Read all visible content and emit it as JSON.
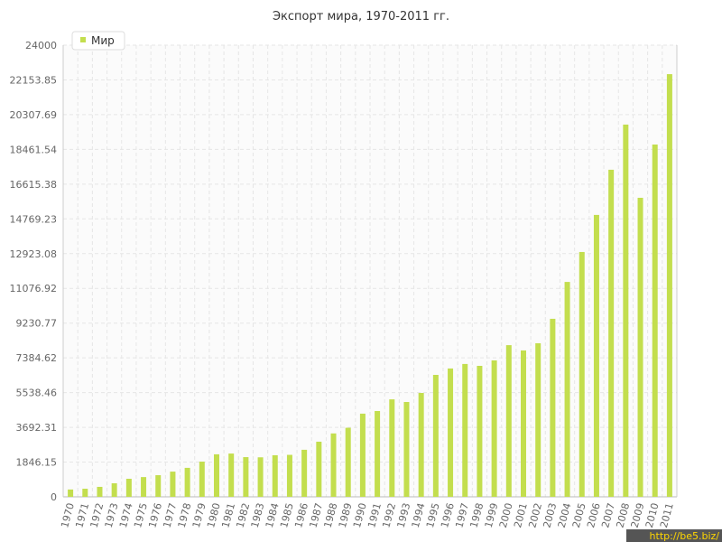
{
  "chart_data": {
    "type": "bar",
    "title": "Экспорт мира, 1970-2011 гг.",
    "categories": [
      "1970",
      "1971",
      "1972",
      "1973",
      "1974",
      "1975",
      "1976",
      "1977",
      "1978",
      "1979",
      "1980",
      "1981",
      "1982",
      "1983",
      "1984",
      "1985",
      "1986",
      "1987",
      "1988",
      "1989",
      "1990",
      "1991",
      "1992",
      "1993",
      "1994",
      "1995",
      "1996",
      "1997",
      "1998",
      "1999",
      "2000",
      "2001",
      "2002",
      "2003",
      "2004",
      "2005",
      "2006",
      "2007",
      "2008",
      "2009",
      "2010",
      "2011"
    ],
    "series": [
      {
        "name": "Мир",
        "color": "#c3de4e",
        "values": [
          390,
          430,
          530,
          720,
          960,
          1050,
          1150,
          1340,
          1540,
          1870,
          2260,
          2300,
          2110,
          2100,
          2210,
          2230,
          2500,
          2930,
          3370,
          3670,
          4420,
          4560,
          5180,
          5040,
          5520,
          6480,
          6820,
          7060,
          6960,
          7250,
          8060,
          7780,
          8160,
          9460,
          11420,
          13010,
          14980,
          17380,
          19780,
          15890,
          18720,
          22460
        ]
      }
    ],
    "ylim": [
      0,
      24000
    ],
    "yticks": [
      0,
      1846.15,
      3692.31,
      5538.46,
      7384.62,
      9230.77,
      11076.92,
      12923.08,
      14769.23,
      16615.38,
      18461.54,
      20307.69,
      22153.85,
      24000
    ],
    "grid": true,
    "legend": "top-left",
    "watermark": "http://be5.biz/"
  }
}
